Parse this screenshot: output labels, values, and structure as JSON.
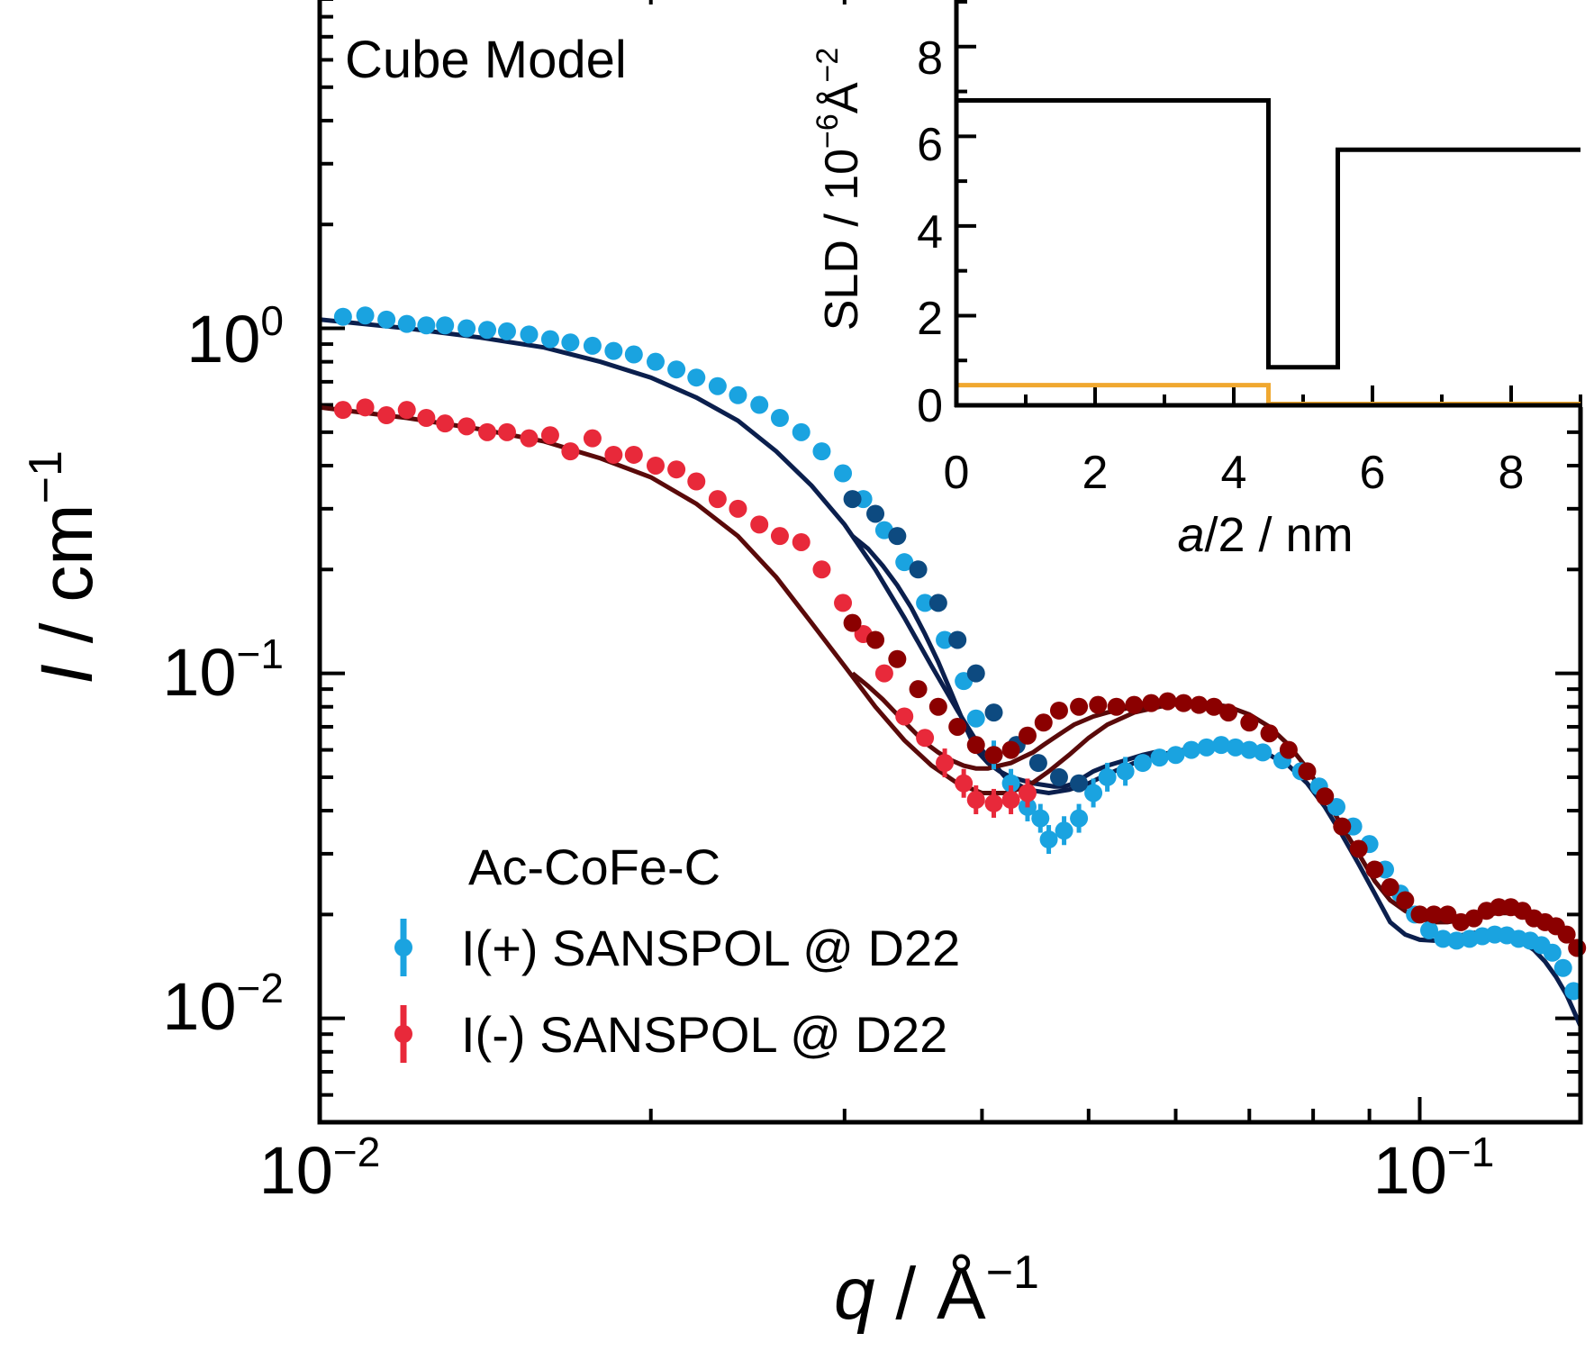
{
  "chart_data": [
    {
      "type": "scatter",
      "x_axis": {
        "label_var": "q",
        "label_sep": " / ",
        "label_unit": "Å",
        "label_unit_exp": "−1",
        "scale": "log",
        "range": [
          0.01,
          0.14
        ],
        "tick_labels": [
          {
            "value": 0.01,
            "base": "10",
            "exp": "−2"
          },
          {
            "value": 0.1,
            "base": "10",
            "exp": "−1"
          }
        ]
      },
      "y_axis": {
        "label_var": "I",
        "label_sep": " / ",
        "label_unit": "cm",
        "label_unit_exp": "−1",
        "scale": "log",
        "range": [
          0.005,
          9.5
        ],
        "tick_labels": [
          {
            "value": 1,
            "base": "10",
            "exp": "0"
          },
          {
            "value": 0.1,
            "base": "10",
            "exp": "−1"
          },
          {
            "value": 0.01,
            "base": "10",
            "exp": "−2"
          }
        ]
      },
      "annotation": "Cube Model",
      "legend": {
        "title": "Ac-CoFe-C",
        "placement": "bottom-left"
      },
      "series": [
        {
          "name": "I(+) SANSPOL @ D22",
          "color": "#1aa3e0",
          "dark_color": "#0d4a80",
          "x": [
            0.0105,
            0.011,
            0.0115,
            0.012,
            0.0125,
            0.013,
            0.0136,
            0.0142,
            0.0148,
            0.0155,
            0.0162,
            0.0169,
            0.0177,
            0.0185,
            0.0193,
            0.0202,
            0.0211,
            0.022,
            0.023,
            0.024,
            0.0251,
            0.0262,
            0.0274,
            0.0286,
            0.0299,
            0.0312,
            0.0326,
            0.034,
            0.0355,
            0.037,
            0.0385,
            0.0395,
            0.041,
            0.0425,
            0.044,
            0.0452,
            0.046,
            0.0475,
            0.049,
            0.0505,
            0.052,
            0.054,
            0.056,
            0.058,
            0.06,
            0.062,
            0.064,
            0.066,
            0.068,
            0.07,
            0.072,
            0.075,
            0.078,
            0.081,
            0.084,
            0.087,
            0.09,
            0.093,
            0.096,
            0.099,
            0.102,
            0.105,
            0.108,
            0.111,
            0.114,
            0.117,
            0.12,
            0.123,
            0.126,
            0.129,
            0.132,
            0.135,
            0.138
          ],
          "y": [
            1.08,
            1.09,
            1.06,
            1.03,
            1.02,
            1.02,
            1.0,
            0.99,
            0.98,
            0.96,
            0.93,
            0.91,
            0.89,
            0.86,
            0.84,
            0.8,
            0.76,
            0.72,
            0.68,
            0.64,
            0.6,
            0.55,
            0.5,
            0.44,
            0.38,
            0.32,
            0.26,
            0.21,
            0.16,
            0.125,
            0.095,
            0.074,
            0.058,
            0.048,
            0.041,
            0.038,
            0.033,
            0.035,
            0.038,
            0.045,
            0.05,
            0.052,
            0.055,
            0.057,
            0.058,
            0.06,
            0.061,
            0.062,
            0.061,
            0.06,
            0.059,
            0.056,
            0.052,
            0.047,
            0.041,
            0.036,
            0.032,
            0.027,
            0.023,
            0.02,
            0.018,
            0.017,
            0.0168,
            0.017,
            0.0173,
            0.0175,
            0.0174,
            0.017,
            0.0168,
            0.0163,
            0.0155,
            0.014,
            0.012
          ],
          "dark_x": [
            0.0305,
            0.032,
            0.0335,
            0.035,
            0.0365,
            0.038,
            0.0395,
            0.041,
            0.043,
            0.045,
            0.047,
            0.049
          ],
          "dark_y": [
            0.32,
            0.29,
            0.25,
            0.2,
            0.16,
            0.125,
            0.1,
            0.077,
            0.062,
            0.055,
            0.05,
            0.048
          ],
          "fit_x": [
            0.01,
            0.012,
            0.014,
            0.016,
            0.018,
            0.02,
            0.022,
            0.024,
            0.026,
            0.028,
            0.03,
            0.032,
            0.034,
            0.036,
            0.038,
            0.04,
            0.042,
            0.044,
            0.046,
            0.048,
            0.05,
            0.052,
            0.055,
            0.058,
            0.061,
            0.064,
            0.067,
            0.07,
            0.073,
            0.076,
            0.079,
            0.082,
            0.085,
            0.088,
            0.091,
            0.094,
            0.097,
            0.1,
            0.103,
            0.106,
            0.109,
            0.112,
            0.115,
            0.118,
            0.121,
            0.124,
            0.127,
            0.13,
            0.133,
            0.136,
            0.14
          ],
          "fit_y": [
            1.06,
            1.0,
            0.94,
            0.88,
            0.8,
            0.72,
            0.63,
            0.54,
            0.44,
            0.35,
            0.27,
            0.2,
            0.145,
            0.105,
            0.078,
            0.06,
            0.05,
            0.046,
            0.045,
            0.046,
            0.048,
            0.051,
            0.055,
            0.058,
            0.06,
            0.0615,
            0.062,
            0.061,
            0.058,
            0.054,
            0.048,
            0.041,
            0.034,
            0.028,
            0.023,
            0.019,
            0.0175,
            0.0169,
            0.0168,
            0.017,
            0.0174,
            0.0177,
            0.0178,
            0.0176,
            0.0172,
            0.0166,
            0.0158,
            0.0146,
            0.0132,
            0.0117,
            0.0095
          ],
          "fit2_x": [
            0.0305,
            0.0315,
            0.0325,
            0.0335,
            0.0345,
            0.0355,
            0.0365,
            0.0375,
            0.0385,
            0.0395,
            0.0405,
            0.0415,
            0.0425,
            0.0435,
            0.0445,
            0.0455,
            0.0465,
            0.0475,
            0.0485,
            0.0495,
            0.0505,
            0.052,
            0.054,
            0.056,
            0.058
          ],
          "fit2_y": [
            0.25,
            0.23,
            0.205,
            0.18,
            0.155,
            0.13,
            0.108,
            0.088,
            0.072,
            0.06,
            0.055,
            0.052,
            0.05,
            0.049,
            0.048,
            0.0475,
            0.047,
            0.047,
            0.048,
            0.05,
            0.052,
            0.054,
            0.056,
            0.058,
            0.0595
          ]
        },
        {
          "name": "I(-) SANSPOL @ D22",
          "color": "#e8293a",
          "dark_color": "#8b0000",
          "x": [
            0.0105,
            0.011,
            0.0115,
            0.012,
            0.0125,
            0.013,
            0.0136,
            0.0142,
            0.0148,
            0.0155,
            0.0162,
            0.0169,
            0.0177,
            0.0185,
            0.0193,
            0.0202,
            0.0211,
            0.022,
            0.023,
            0.024,
            0.0251,
            0.0262,
            0.0274,
            0.0286,
            0.0299,
            0.0312,
            0.0326,
            0.034,
            0.0355,
            0.037,
            0.0385,
            0.0395,
            0.041,
            0.0425,
            0.044
          ],
          "y": [
            0.58,
            0.59,
            0.56,
            0.58,
            0.55,
            0.53,
            0.52,
            0.5,
            0.5,
            0.48,
            0.49,
            0.44,
            0.48,
            0.43,
            0.43,
            0.4,
            0.39,
            0.36,
            0.32,
            0.3,
            0.27,
            0.25,
            0.24,
            0.2,
            0.16,
            0.13,
            0.1,
            0.075,
            0.065,
            0.055,
            0.048,
            0.043,
            0.042,
            0.043,
            0.045
          ],
          "dark_x": [
            0.0305,
            0.032,
            0.0335,
            0.035,
            0.0365,
            0.038,
            0.0395,
            0.041,
            0.0425,
            0.044,
            0.0455,
            0.047,
            0.049,
            0.051,
            0.053,
            0.055,
            0.057,
            0.059,
            0.061,
            0.063,
            0.065,
            0.067,
            0.07,
            0.073,
            0.076,
            0.079,
            0.082,
            0.085,
            0.088,
            0.091,
            0.094,
            0.097,
            0.1,
            0.103,
            0.106,
            0.109,
            0.112,
            0.115,
            0.118,
            0.121,
            0.124,
            0.127,
            0.13,
            0.133,
            0.136,
            0.139
          ],
          "dark_y": [
            0.14,
            0.125,
            0.11,
            0.09,
            0.08,
            0.07,
            0.062,
            0.058,
            0.06,
            0.066,
            0.072,
            0.078,
            0.08,
            0.081,
            0.08,
            0.081,
            0.082,
            0.083,
            0.082,
            0.081,
            0.08,
            0.077,
            0.072,
            0.067,
            0.06,
            0.052,
            0.044,
            0.036,
            0.031,
            0.027,
            0.024,
            0.022,
            0.02,
            0.02,
            0.02,
            0.019,
            0.0195,
            0.0205,
            0.021,
            0.021,
            0.0205,
            0.0195,
            0.019,
            0.0185,
            0.0175,
            0.016
          ],
          "fit_x": [
            0.01,
            0.012,
            0.014,
            0.016,
            0.018,
            0.02,
            0.022,
            0.024,
            0.026,
            0.028,
            0.03,
            0.032,
            0.034,
            0.036,
            0.038,
            0.04,
            0.042,
            0.044,
            0.046,
            0.048,
            0.05,
            0.052,
            0.055,
            0.058,
            0.061,
            0.064,
            0.067,
            0.07,
            0.073,
            0.076,
            0.079,
            0.082,
            0.085,
            0.088,
            0.091,
            0.094,
            0.097,
            0.1,
            0.103,
            0.106,
            0.109,
            0.112,
            0.115,
            0.118,
            0.121,
            0.124,
            0.127,
            0.13,
            0.133,
            0.136,
            0.14
          ],
          "fit_y": [
            0.59,
            0.55,
            0.51,
            0.47,
            0.42,
            0.37,
            0.31,
            0.25,
            0.19,
            0.14,
            0.105,
            0.08,
            0.064,
            0.054,
            0.048,
            0.045,
            0.045,
            0.047,
            0.052,
            0.058,
            0.065,
            0.071,
            0.077,
            0.08,
            0.082,
            0.082,
            0.08,
            0.076,
            0.07,
            0.062,
            0.053,
            0.044,
            0.036,
            0.03,
            0.025,
            0.022,
            0.0205,
            0.0195,
            0.019,
            0.019,
            0.0193,
            0.0197,
            0.02,
            0.0202,
            0.0202,
            0.02,
            0.0197,
            0.0192,
            0.0185,
            0.0175,
            0.0158
          ],
          "fit2_x": [
            0.0305,
            0.0315,
            0.0325,
            0.0335,
            0.0345,
            0.0355,
            0.0365,
            0.0375,
            0.0385,
            0.0395,
            0.0405,
            0.0415,
            0.0425,
            0.0435,
            0.0445,
            0.0455,
            0.0465,
            0.0475,
            0.0485,
            0.0495,
            0.0505,
            0.052,
            0.054,
            0.056,
            0.058
          ],
          "fit2_y": [
            0.1,
            0.092,
            0.084,
            0.076,
            0.069,
            0.063,
            0.059,
            0.056,
            0.054,
            0.053,
            0.053,
            0.054,
            0.055,
            0.057,
            0.059,
            0.062,
            0.065,
            0.068,
            0.071,
            0.073,
            0.075,
            0.077,
            0.079,
            0.08,
            0.081
          ]
        }
      ]
    },
    {
      "type": "line",
      "x_axis": {
        "label_var": "a",
        "label_rest": "/2",
        "label_sep": " / ",
        "label_unit": "nm",
        "range": [
          0,
          9
        ],
        "ticks": [
          "0",
          "2",
          "4",
          "6",
          "8"
        ]
      },
      "y_axis": {
        "label_text": "SLD",
        "label_sep": " / ",
        "label_unit": "10",
        "label_unit_exp": "−6",
        "label_unit2": "Å",
        "label_unit2_exp": "−2",
        "range": [
          0,
          9
        ],
        "ticks": [
          "0",
          "2",
          "4",
          "6",
          "8"
        ]
      },
      "series": [
        {
          "color": "#000000",
          "x": [
            0,
            4.5,
            4.5,
            5.5,
            5.5,
            9
          ],
          "y": [
            6.8,
            6.8,
            0.85,
            0.85,
            5.7,
            5.7
          ]
        },
        {
          "color": "#f0a830",
          "x": [
            0,
            4.5,
            4.5,
            9
          ],
          "y": [
            0.45,
            0.45,
            0.03,
            0.03
          ]
        }
      ]
    }
  ]
}
